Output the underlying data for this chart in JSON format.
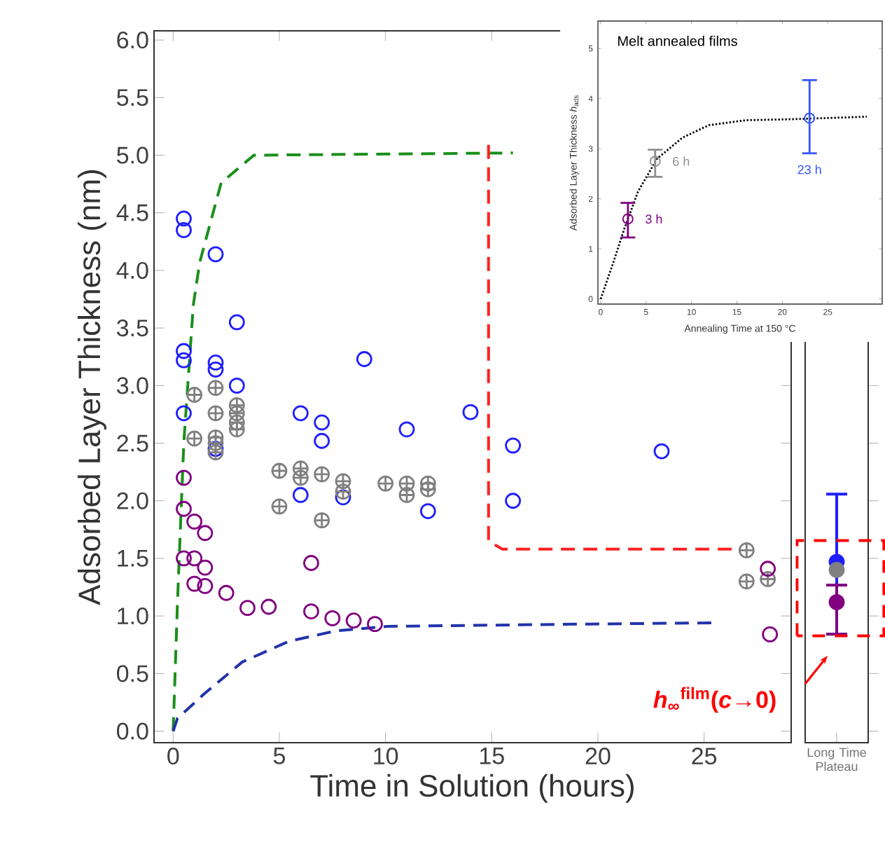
{
  "chart_data": [
    {
      "type": "scatter",
      "xlabel": "Time in Solution (hours)",
      "ylabel": "Adsorbed Layer Thickness (nm)",
      "xlim": [
        -0.9,
        29.1
      ],
      "ylim": [
        -0.1,
        6.08
      ],
      "xticks": [
        0,
        5,
        10,
        15,
        20,
        25
      ],
      "yticks": [
        {
          "value": 0,
          "label": "0.0"
        },
        {
          "value": 0.5,
          "label": "0.5"
        },
        {
          "value": 1,
          "label": "1.0"
        },
        {
          "value": 1.5,
          "label": "1.5"
        },
        {
          "value": 2,
          "label": "2.0"
        },
        {
          "value": 2.5,
          "label": "2.5"
        },
        {
          "value": 3,
          "label": "3.0"
        },
        {
          "value": 3.5,
          "label": "3.5"
        },
        {
          "value": 4,
          "label": "4.0"
        },
        {
          "value": 4.5,
          "label": "4.5"
        },
        {
          "value": 5,
          "label": "5.0"
        },
        {
          "value": 5.5,
          "label": "5.5"
        },
        {
          "value": 6,
          "label": "6.0"
        }
      ],
      "annotations": [
        "*h*$_{∞}$$^{film}$(*c*→0)"
      ],
      "series": [
        {
          "type": "line",
          "color": "#1a8f1a",
          "line_style": "dashed",
          "marker": "none",
          "x": [
            0,
            0.2,
            0.5,
            0.95,
            1.25,
            2.26,
            3.8,
            16
          ],
          "values": [
            0,
            1.1,
            2.5,
            3.7,
            4.07,
            4.76,
            5.0,
            5.02
          ]
        },
        {
          "type": "line",
          "color": "#ff2020",
          "line_style": "dashed",
          "marker": "none",
          "x": [
            14.85,
            14.85,
            15.5,
            26.5
          ],
          "values": [
            5.09,
            1.65,
            1.58,
            1.58
          ]
        },
        {
          "type": "line",
          "color": "#2233aa",
          "line_style": "dashed",
          "marker": "none",
          "x": [
            0,
            0.2,
            1.5,
            3.25,
            5.45,
            7.65,
            10.1,
            19.6,
            25.4
          ],
          "values": [
            0,
            0.11,
            0.33,
            0.6,
            0.78,
            0.87,
            0.91,
            0.93,
            0.94
          ]
        },
        {
          "type": "scatter",
          "color": "#1f1fff",
          "marker": "circle",
          "x": [
            0.5,
            0.5,
            2,
            3,
            0.5,
            0.5,
            2,
            2,
            3,
            0.5,
            9,
            6,
            7,
            7,
            11,
            14,
            16,
            6,
            8,
            12,
            16,
            2,
            23
          ],
          "values": [
            4.45,
            4.35,
            4.14,
            3.55,
            3.3,
            3.22,
            3.2,
            3.14,
            3.0,
            2.76,
            3.23,
            2.76,
            2.68,
            2.52,
            2.62,
            2.77,
            2.48,
            2.05,
            2.03,
            1.91,
            2.0,
            2.45,
            2.43
          ]
        },
        {
          "type": "scatter",
          "color": "#808080",
          "marker": "cross",
          "x": [
            1,
            2,
            2,
            3,
            3,
            3,
            1,
            2,
            2,
            2,
            3,
            5,
            5,
            6,
            6,
            7,
            7,
            8,
            8,
            10,
            11,
            11,
            12,
            12,
            27,
            27,
            28
          ],
          "values": [
            2.92,
            2.98,
            2.76,
            2.83,
            2.76,
            2.68,
            2.54,
            2.55,
            2.5,
            2.42,
            2.62,
            2.26,
            1.95,
            2.28,
            2.2,
            2.23,
            1.83,
            2.17,
            2.08,
            2.15,
            2.15,
            2.05,
            2.15,
            2.1,
            1.57,
            1.3,
            1.32
          ]
        },
        {
          "type": "scatter",
          "color": "#800080",
          "marker": "circle",
          "x": [
            0.5,
            0.5,
            1,
            1.5,
            0.5,
            1,
            1.5,
            1,
            1.5,
            2.5,
            3.5,
            4.5,
            6.5,
            6.5,
            7.5,
            8.5,
            9.5,
            28,
            28.1
          ],
          "values": [
            2.2,
            1.93,
            1.82,
            1.72,
            1.5,
            1.5,
            1.42,
            1.28,
            1.26,
            1.2,
            1.07,
            1.08,
            1.46,
            1.04,
            0.98,
            0.96,
            0.93,
            1.41,
            0.84
          ]
        }
      ]
    },
    {
      "type": "scatter",
      "categories": [
        "Long Time Plateau"
      ],
      "ylim": [
        -0.1,
        6.08
      ],
      "tick_labels": "x",
      "yticks": [
        {
          "value": 0,
          "label": null
        },
        {
          "value": 0.5,
          "label": null
        },
        {
          "value": 1,
          "label": null
        },
        {
          "value": 1.5,
          "label": null
        },
        {
          "value": 2,
          "label": null
        },
        {
          "value": 2.5,
          "label": null
        },
        {
          "value": 3,
          "label": null
        },
        {
          "value": 3.5,
          "label": null
        },
        {
          "value": 4,
          "label": null
        },
        {
          "value": 4.5,
          "label": null
        },
        {
          "value": 5,
          "label": null
        },
        {
          "value": 5.5,
          "label": null
        },
        {
          "value": 6,
          "label": null
        }
      ],
      "series": [
        {
          "color": "#1f1fff",
          "marker": "circle",
          "values": [
            1.47
          ],
          "errors": [
            [
              0.83,
              2.07
            ]
          ]
        },
        {
          "color": "#808080",
          "marker": "circle",
          "values": [
            1.4
          ]
        },
        {
          "color": "#800080",
          "marker": "circle",
          "values": [
            1.12
          ],
          "errors": [
            [
              0.83,
              1.28
            ]
          ]
        }
      ]
    },
    {
      "type": "scatter",
      "title": "Melt annealed films",
      "xlabel": "Annealing Time at 150 °C",
      "ylabel": "Adsorbed Layer Thickness *h*$_{ads}$",
      "xlim": [
        -0.3,
        31
      ],
      "ylim": [
        -0.1,
        5.55
      ],
      "xticks": [
        0,
        5,
        10,
        15,
        20,
        25
      ],
      "yticks": [
        0,
        1,
        2,
        3,
        4,
        5
      ],
      "series": [
        {
          "type": "line",
          "color": "#000000",
          "line_style": "dotted",
          "marker": "none",
          "x": [
            0,
            1.32,
            2.6,
            4.1,
            6.2,
            9.0,
            11.9,
            16,
            21.1,
            29.3
          ],
          "values": [
            0,
            0.69,
            1.4,
            2.14,
            2.8,
            3.22,
            3.47,
            3.57,
            3.59,
            3.64
          ]
        },
        {
          "name": "3 h",
          "color": "#800080",
          "marker": "circle",
          "x": [
            3
          ],
          "values": [
            1.6
          ],
          "errors": [
            [
              1.21,
              1.94
            ]
          ]
        },
        {
          "name": "6 h",
          "color": "#909090",
          "marker": "circle",
          "x": [
            6
          ],
          "values": [
            2.75
          ],
          "errors": [
            [
              2.42,
              3.0
            ]
          ]
        },
        {
          "name": "23 h",
          "color": "#3355ff",
          "marker": "circle",
          "x": [
            23
          ],
          "values": [
            3.61
          ],
          "errors": [
            [
              2.89,
              4.39
            ]
          ]
        }
      ]
    }
  ]
}
